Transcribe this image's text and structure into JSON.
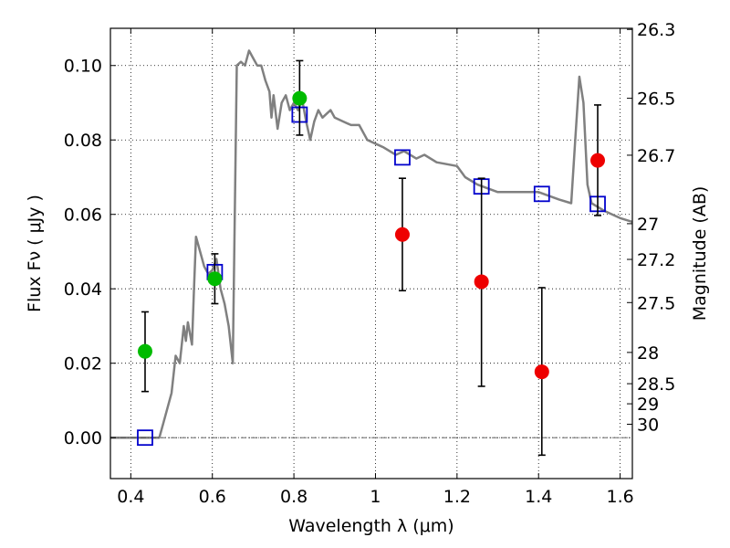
{
  "chart_data": {
    "type": "scatter",
    "xlabel": "Wavelength  λ (μm)",
    "ylabel": "Flux  Fν  ( μJy )",
    "ylabel_right": "Magnitude (AB)",
    "xlim": [
      0.35,
      1.63
    ],
    "ylim": [
      -0.011,
      0.11
    ],
    "grid": true,
    "x_ticks": [
      0.4,
      0.6,
      0.8,
      1.0,
      1.2,
      1.4,
      1.6
    ],
    "x_tick_labels": [
      "0.4",
      "0.6",
      "0.8",
      "1",
      "1.2",
      "1.4",
      "1.6"
    ],
    "y_ticks": [
      0.0,
      0.02,
      0.04,
      0.06,
      0.08,
      0.1
    ],
    "y_tick_labels": [
      "0.00",
      "0.02",
      "0.04",
      "0.06",
      "0.08",
      "0.10"
    ],
    "right_ticks": [
      {
        "label": "26.3",
        "flux": 0.1097
      },
      {
        "label": "26.5",
        "flux": 0.0912
      },
      {
        "label": "26.7",
        "flux": 0.0759
      },
      {
        "label": "27",
        "flux": 0.0575
      },
      {
        "label": "27.2",
        "flux": 0.0479
      },
      {
        "label": "27.5",
        "flux": 0.0363
      },
      {
        "label": "28",
        "flux": 0.0229
      },
      {
        "label": "28.5",
        "flux": 0.0145
      },
      {
        "label": "29",
        "flux": 0.0091
      },
      {
        "label": "30",
        "flux": 0.0036
      }
    ],
    "colors": {
      "model": "#808080",
      "green": "#00bb00",
      "red": "#ee0000",
      "square": "#0000cc",
      "errorbar": "#000000"
    },
    "series": [
      {
        "kind": "line",
        "points": [
          [
            0.35,
            0.0
          ],
          [
            0.47,
            0.0
          ],
          [
            0.48,
            0.004
          ],
          [
            0.5,
            0.012
          ],
          [
            0.51,
            0.022
          ],
          [
            0.52,
            0.02
          ],
          [
            0.53,
            0.03
          ],
          [
            0.535,
            0.026
          ],
          [
            0.54,
            0.031
          ],
          [
            0.55,
            0.025
          ],
          [
            0.555,
            0.04
          ],
          [
            0.56,
            0.054
          ],
          [
            0.57,
            0.05
          ],
          [
            0.58,
            0.046
          ],
          [
            0.59,
            0.044
          ],
          [
            0.6,
            0.045
          ],
          [
            0.61,
            0.048
          ],
          [
            0.62,
            0.04
          ],
          [
            0.63,
            0.036
          ],
          [
            0.64,
            0.03
          ],
          [
            0.65,
            0.02
          ],
          [
            0.655,
            0.06
          ],
          [
            0.66,
            0.1
          ],
          [
            0.67,
            0.101
          ],
          [
            0.68,
            0.1
          ],
          [
            0.69,
            0.104
          ],
          [
            0.7,
            0.102
          ],
          [
            0.71,
            0.1
          ],
          [
            0.72,
            0.1
          ],
          [
            0.73,
            0.096
          ],
          [
            0.74,
            0.093
          ],
          [
            0.745,
            0.086
          ],
          [
            0.75,
            0.092
          ],
          [
            0.76,
            0.083
          ],
          [
            0.77,
            0.09
          ],
          [
            0.78,
            0.092
          ],
          [
            0.79,
            0.088
          ],
          [
            0.8,
            0.09
          ],
          [
            0.81,
            0.088
          ],
          [
            0.82,
            0.091
          ],
          [
            0.83,
            0.085
          ],
          [
            0.84,
            0.08
          ],
          [
            0.85,
            0.085
          ],
          [
            0.86,
            0.088
          ],
          [
            0.87,
            0.086
          ],
          [
            0.88,
            0.087
          ],
          [
            0.89,
            0.088
          ],
          [
            0.9,
            0.086
          ],
          [
            0.92,
            0.085
          ],
          [
            0.94,
            0.084
          ],
          [
            0.96,
            0.084
          ],
          [
            0.98,
            0.08
          ],
          [
            1.0,
            0.079
          ],
          [
            1.02,
            0.078
          ],
          [
            1.05,
            0.076
          ],
          [
            1.07,
            0.077
          ],
          [
            1.1,
            0.075
          ],
          [
            1.12,
            0.076
          ],
          [
            1.15,
            0.074
          ],
          [
            1.2,
            0.073
          ],
          [
            1.22,
            0.07
          ],
          [
            1.25,
            0.068
          ],
          [
            1.3,
            0.066
          ],
          [
            1.35,
            0.066
          ],
          [
            1.4,
            0.066
          ],
          [
            1.45,
            0.064
          ],
          [
            1.48,
            0.063
          ],
          [
            1.49,
            0.08
          ],
          [
            1.5,
            0.097
          ],
          [
            1.51,
            0.09
          ],
          [
            1.52,
            0.068
          ],
          [
            1.53,
            0.063
          ],
          [
            1.56,
            0.061
          ],
          [
            1.6,
            0.059
          ],
          [
            1.63,
            0.058
          ]
        ]
      },
      {
        "kind": "errorbar",
        "name": "green",
        "points": [
          {
            "x": 0.435,
            "y": 0.0232,
            "lo": 0.0124,
            "hi": 0.0338
          },
          {
            "x": 0.606,
            "y": 0.0427,
            "lo": 0.036,
            "hi": 0.0494
          },
          {
            "x": 0.814,
            "y": 0.0912,
            "lo": 0.0813,
            "hi": 0.1013
          }
        ]
      },
      {
        "kind": "errorbar",
        "name": "red",
        "points": [
          {
            "x": 1.066,
            "y": 0.0546,
            "lo": 0.0395,
            "hi": 0.0697
          },
          {
            "x": 1.26,
            "y": 0.0419,
            "lo": 0.0138,
            "hi": 0.0697
          },
          {
            "x": 1.408,
            "y": 0.0177,
            "lo": -0.0047,
            "hi": 0.0403
          },
          {
            "x": 1.545,
            "y": 0.0745,
            "lo": 0.0597,
            "hi": 0.0894
          }
        ]
      },
      {
        "kind": "markers",
        "name": "model_photometry",
        "points": [
          [
            0.435,
            0.0
          ],
          [
            0.606,
            0.0445
          ],
          [
            0.814,
            0.0868
          ],
          [
            1.066,
            0.0753
          ],
          [
            1.26,
            0.0675
          ],
          [
            1.408,
            0.0655
          ],
          [
            1.545,
            0.0628
          ]
        ]
      }
    ]
  }
}
